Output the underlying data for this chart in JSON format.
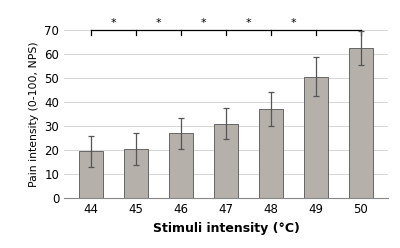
{
  "categories": [
    44,
    45,
    46,
    47,
    48,
    49,
    50
  ],
  "values": [
    19.5,
    20.5,
    27.0,
    31.0,
    37.0,
    50.5,
    62.5
  ],
  "errors": [
    6.5,
    6.5,
    6.5,
    6.5,
    7.0,
    8.0,
    7.0
  ],
  "bar_color": "#b5b0aa",
  "bar_edgecolor": "#666666",
  "xlabel": "Stimuli intensity (°C)",
  "ylabel": "Pain intensity (0-100, NPS)",
  "ylim": [
    0,
    70
  ],
  "yticks": [
    0,
    10,
    20,
    30,
    40,
    50,
    60,
    70
  ],
  "background_color": "#ffffff",
  "bar_width": 0.55
}
